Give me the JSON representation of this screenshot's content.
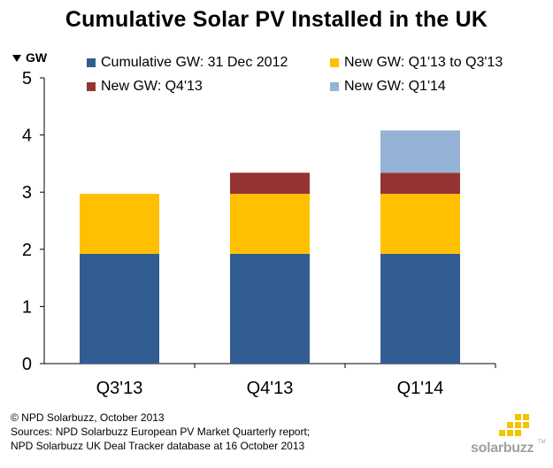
{
  "title": "Cumulative Solar PV Installed in the UK",
  "chart_data": {
    "type": "bar",
    "stacked": true,
    "title": "Cumulative Solar PV Installed in the UK",
    "ylabel": "GW",
    "ylim": [
      0,
      5
    ],
    "yticks": [
      0,
      1,
      2,
      3,
      4,
      5
    ],
    "grid": false,
    "legend_position": "top",
    "categories": [
      "Q3'13",
      "Q4'13",
      "Q1'14"
    ],
    "series": [
      {
        "name": "Cumulative GW:  31 Dec 2012",
        "color": "#325d93",
        "values": [
          1.92,
          1.92,
          1.92
        ]
      },
      {
        "name": "New GW:  Q1'13 to Q3'13",
        "color": "#fec000",
        "values": [
          1.05,
          1.05,
          1.05
        ]
      },
      {
        "name": "New GW:  Q4'13",
        "color": "#963433",
        "values": [
          0,
          0.37,
          0.37
        ]
      },
      {
        "name": "New GW:  Q1'14",
        "color": "#94b3d6",
        "values": [
          0,
          0,
          0.74
        ]
      }
    ]
  },
  "footer": {
    "line1": "© NPD Solarbuzz, October 2013",
    "line2": "Sources: NPD Solarbuzz European PV Market Quarterly report;",
    "line3": "NPD Solarbuzz UK Deal Tracker database at 16 October 2013"
  },
  "logo": {
    "text": "solarbuzz",
    "tm": "TM",
    "color": "#f5c400"
  }
}
